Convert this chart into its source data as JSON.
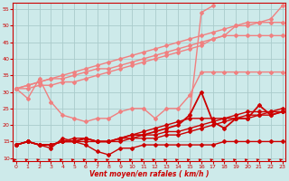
{
  "title": "",
  "xlabel": "Vent moyen/en rafales ( km/h )",
  "ylabel": "",
  "background_color": "#cdeaea",
  "grid_color": "#aacccc",
  "x": [
    0,
    1,
    2,
    3,
    4,
    5,
    6,
    7,
    8,
    9,
    10,
    11,
    12,
    13,
    14,
    15,
    16,
    17,
    18,
    19,
    20,
    21,
    22,
    23
  ],
  "lines": [
    {
      "y": [
        31,
        32,
        33,
        34,
        35,
        36,
        37,
        38,
        39,
        40,
        41,
        42,
        43,
        44,
        45,
        46,
        47,
        48,
        49,
        50,
        51,
        51,
        52,
        56
      ],
      "color": "#f08080",
      "lw": 1.0,
      "marker": "D",
      "ms": 2
    },
    {
      "y": [
        31,
        32,
        33,
        34,
        34,
        35,
        36,
        37,
        37,
        38,
        39,
        40,
        41,
        42,
        43,
        44,
        45,
        46,
        47,
        50,
        50,
        51,
        51,
        51
      ],
      "color": "#f08080",
      "lw": 1.0,
      "marker": "D",
      "ms": 2
    },
    {
      "y": [
        31,
        31,
        32,
        32,
        33,
        33,
        34,
        35,
        36,
        37,
        38,
        39,
        40,
        41,
        42,
        43,
        44,
        46,
        47,
        47,
        47,
        47,
        47,
        47
      ],
      "color": "#f08080",
      "lw": 1.0,
      "marker": "D",
      "ms": 2
    },
    {
      "y": [
        31,
        28,
        34,
        27,
        23,
        22,
        21,
        22,
        22,
        24,
        25,
        25,
        22,
        25,
        25,
        29,
        36,
        36,
        36,
        36,
        36,
        36,
        36,
        36
      ],
      "color": "#f08080",
      "lw": 1.0,
      "marker": "D",
      "ms": 2
    },
    {
      "y": [
        null,
        null,
        null,
        null,
        null,
        null,
        null,
        null,
        null,
        null,
        null,
        null,
        null,
        null,
        null,
        23,
        54,
        56,
        null,
        null,
        null,
        null,
        null,
        null
      ],
      "color": "#f08080",
      "lw": 1.0,
      "marker": "D",
      "ms": 2
    },
    {
      "y": [
        14,
        15,
        14,
        13,
        16,
        15,
        14,
        12,
        11,
        13,
        13,
        14,
        14,
        14,
        14,
        14,
        14,
        14,
        15,
        15,
        15,
        15,
        15,
        15
      ],
      "color": "#cc0000",
      "lw": 1.0,
      "marker": "D",
      "ms": 2
    },
    {
      "y": [
        14,
        15,
        14,
        14,
        15,
        15,
        15,
        15,
        15,
        15,
        16,
        16,
        16,
        17,
        17,
        18,
        19,
        20,
        21,
        22,
        22,
        23,
        23,
        24
      ],
      "color": "#cc0000",
      "lw": 1.0,
      "marker": "D",
      "ms": 2
    },
    {
      "y": [
        14,
        15,
        14,
        14,
        15,
        15,
        16,
        15,
        15,
        16,
        16,
        17,
        17,
        18,
        18,
        19,
        20,
        21,
        22,
        22,
        23,
        23,
        24,
        24
      ],
      "color": "#cc0000",
      "lw": 1.0,
      "marker": "D",
      "ms": 2
    },
    {
      "y": [
        14,
        15,
        14,
        14,
        15,
        15,
        16,
        15,
        15,
        16,
        17,
        17,
        18,
        19,
        20,
        23,
        30,
        21,
        19,
        22,
        22,
        26,
        23,
        24
      ],
      "color": "#cc0000",
      "lw": 1.3,
      "marker": "D",
      "ms": 2
    },
    {
      "y": [
        14,
        15,
        14,
        14,
        15,
        16,
        16,
        15,
        15,
        16,
        17,
        18,
        19,
        20,
        21,
        22,
        22,
        22,
        22,
        23,
        24,
        24,
        24,
        25
      ],
      "color": "#cc0000",
      "lw": 1.0,
      "marker": "D",
      "ms": 2
    }
  ],
  "xlim": [
    -0.3,
    23.3
  ],
  "ylim": [
    9,
    57
  ],
  "yticks": [
    10,
    15,
    20,
    25,
    30,
    35,
    40,
    45,
    50,
    55
  ],
  "xticks": [
    0,
    1,
    2,
    3,
    4,
    5,
    6,
    7,
    8,
    9,
    10,
    11,
    12,
    13,
    14,
    15,
    16,
    17,
    18,
    19,
    20,
    21,
    22,
    23
  ],
  "xtick_labels": [
    "0",
    "1",
    "2",
    "3",
    "4",
    "5",
    "6",
    "7",
    "8",
    "9",
    "10",
    "11",
    "12",
    "13",
    "14",
    "15",
    "16",
    "17",
    "18",
    "19",
    "20",
    "21",
    "22",
    "23"
  ],
  "arrow_color": "#cc0000",
  "tick_color": "#cc0000",
  "label_color": "#cc0000",
  "spine_color": "#cc0000"
}
